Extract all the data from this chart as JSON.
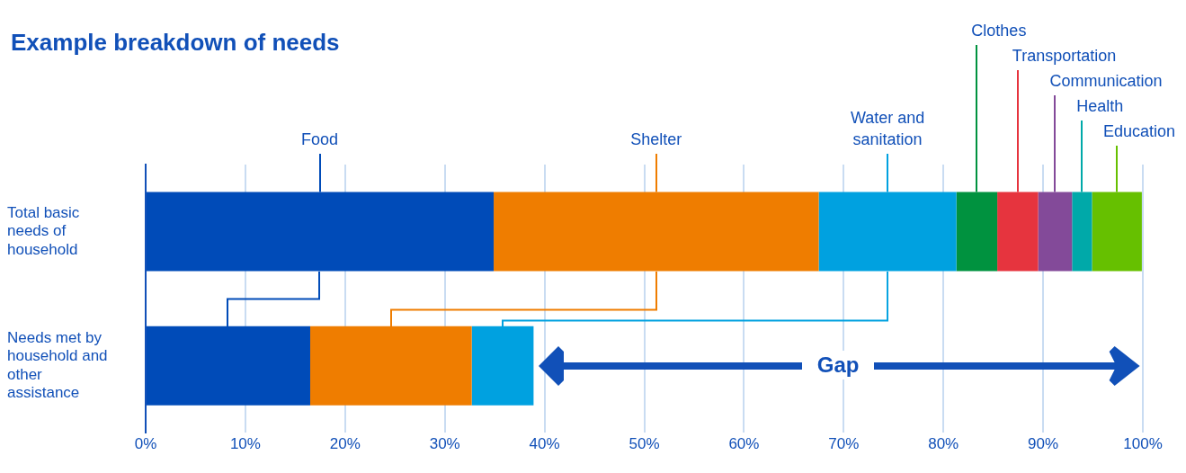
{
  "chart_data": {
    "type": "bar",
    "orientation": "horizontal",
    "stacked": true,
    "title": "Example breakdown of needs",
    "categories": [
      "Total basic needs of household",
      "Needs met by household and other assistance"
    ],
    "series": [
      {
        "name": "Food",
        "color": "#004bb8",
        "values": [
          34.9,
          16.5
        ]
      },
      {
        "name": "Shelter",
        "color": "#ef7d00",
        "values": [
          32.6,
          16.2
        ]
      },
      {
        "name": "Water and sanitation",
        "color": "#00a1e0",
        "values": [
          13.8,
          6.2
        ]
      },
      {
        "name": "Clothes",
        "color": "#00923f",
        "values": [
          4.1,
          null
        ]
      },
      {
        "name": "Transportation",
        "color": "#e6343e",
        "values": [
          4.1,
          null
        ]
      },
      {
        "name": "Communication",
        "color": "#834a99",
        "values": [
          3.4,
          null
        ]
      },
      {
        "name": "Health",
        "color": "#00a9a9",
        "values": [
          2.0,
          null
        ]
      },
      {
        "name": "Education",
        "color": "#66c000",
        "values": [
          5.0,
          null
        ]
      }
    ],
    "xlim": [
      0,
      100
    ],
    "xticks": [
      {
        "value": 0,
        "label": "0%"
      },
      {
        "value": 10,
        "label": "10%"
      },
      {
        "value": 20,
        "label": "20%"
      },
      {
        "value": 30,
        "label": "30%"
      },
      {
        "value": 40,
        "label": "40%"
      },
      {
        "value": 50,
        "label": "50%"
      },
      {
        "value": 60,
        "label": "60%"
      },
      {
        "value": 70,
        "label": "70%"
      },
      {
        "value": 80,
        "label": "80%"
      },
      {
        "value": 90,
        "label": "90%"
      },
      {
        "value": 100,
        "label": "100%"
      }
    ],
    "grid": "x",
    "legend": false,
    "annotations": [
      "Gap"
    ]
  }
}
